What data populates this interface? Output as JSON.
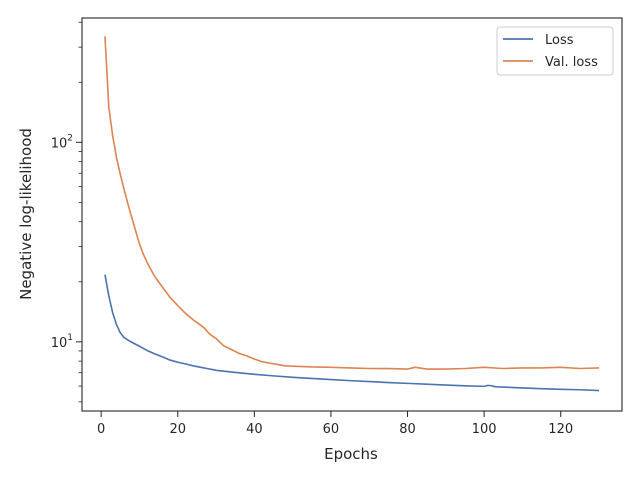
{
  "chart_data": {
    "type": "line",
    "xlabel": "Epochs",
    "ylabel": "Negative log-likelihood",
    "xlim": [
      -5,
      136
    ],
    "ylim": [
      4.5,
      420
    ],
    "yscale": "log",
    "grid": false,
    "legend_position": "top-right",
    "xticks": [
      0,
      20,
      40,
      60,
      80,
      100,
      120
    ],
    "yticks": [
      {
        "value": 10,
        "base": "10",
        "exp": "1"
      },
      {
        "value": 100,
        "base": "10",
        "exp": "2"
      }
    ],
    "series": [
      {
        "name": "Loss",
        "color": "#4c72b0",
        "x": [
          1,
          2,
          3,
          4,
          5,
          6,
          7,
          8,
          10,
          12,
          14,
          16,
          18,
          20,
          22,
          24,
          26,
          28,
          30,
          35,
          40,
          45,
          50,
          55,
          60,
          65,
          70,
          75,
          80,
          85,
          90,
          95,
          100,
          101,
          102,
          103,
          105,
          110,
          115,
          120,
          125,
          130
        ],
        "y": [
          21.7,
          17.0,
          14.0,
          12.2,
          11.1,
          10.5,
          10.2,
          9.95,
          9.5,
          9.05,
          8.7,
          8.4,
          8.1,
          7.9,
          7.75,
          7.58,
          7.45,
          7.33,
          7.2,
          7.02,
          6.87,
          6.75,
          6.64,
          6.55,
          6.47,
          6.39,
          6.32,
          6.25,
          6.19,
          6.13,
          6.07,
          6.02,
          5.98,
          6.05,
          6.02,
          5.95,
          5.93,
          5.87,
          5.82,
          5.78,
          5.75,
          5.7
        ]
      },
      {
        "name": "Val. loss",
        "color": "#dd8452",
        "x": [
          1,
          2,
          3,
          4,
          5,
          6,
          7,
          8,
          9,
          10,
          11,
          12,
          14,
          16,
          18,
          20,
          22,
          24,
          26,
          27,
          28,
          29,
          30,
          31,
          32,
          33,
          34,
          35,
          36,
          38,
          40,
          42,
          44,
          46,
          48,
          50,
          55,
          60,
          65,
          70,
          75,
          80,
          82,
          85,
          90,
          95,
          100,
          105,
          110,
          115,
          120,
          125,
          130
        ],
        "y": [
          340,
          150,
          108,
          84,
          69,
          58,
          49,
          42,
          36,
          31,
          27.5,
          25,
          21.2,
          18.8,
          16.7,
          15.2,
          13.9,
          12.9,
          12.1,
          11.7,
          11.1,
          10.7,
          10.4,
          9.95,
          9.55,
          9.35,
          9.15,
          8.95,
          8.75,
          8.5,
          8.2,
          7.95,
          7.82,
          7.7,
          7.58,
          7.55,
          7.48,
          7.45,
          7.4,
          7.35,
          7.34,
          7.3,
          7.45,
          7.3,
          7.3,
          7.35,
          7.45,
          7.35,
          7.4,
          7.4,
          7.45,
          7.35,
          7.4
        ]
      }
    ]
  }
}
